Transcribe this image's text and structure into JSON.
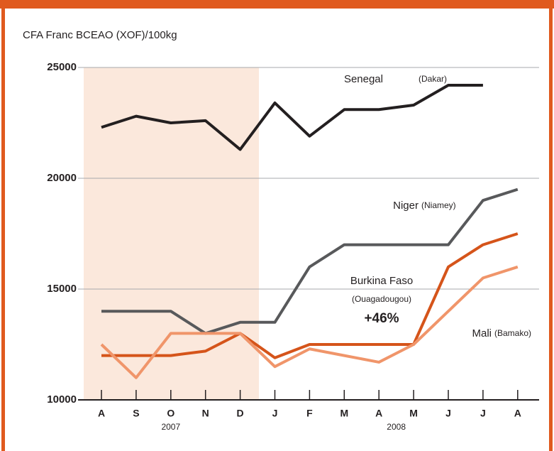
{
  "chart_data": {
    "type": "line",
    "y_axis_label": "CFA Franc BCEAO (XOF)/100kg",
    "categories": [
      "A",
      "S",
      "O",
      "N",
      "D",
      "J",
      "F",
      "M",
      "A",
      "M",
      "J",
      "J",
      "A"
    ],
    "years": [
      "2007",
      "2008"
    ],
    "ylim": [
      10000,
      25000
    ],
    "yticks": [
      10000,
      15000,
      20000,
      25000
    ],
    "grid": true,
    "series": [
      {
        "name": "Senegal",
        "location": "(Dakar)",
        "color": "#231f20",
        "values": [
          22300,
          22800,
          22500,
          22600,
          21300,
          23400,
          21900,
          23100,
          23100,
          23300,
          24200,
          24200,
          null
        ]
      },
      {
        "name": "Niger",
        "location": "(Niamey)",
        "color": "#58595b",
        "values": [
          14000,
          14000,
          14000,
          13000,
          13500,
          13500,
          16000,
          17000,
          17000,
          17000,
          17000,
          19000,
          19500
        ]
      },
      {
        "name": "Burkina Faso",
        "location": "(Ouagadougou)",
        "color": "#d5541a",
        "values": [
          12000,
          12000,
          12000,
          12200,
          13000,
          11900,
          12500,
          12500,
          12500,
          12500,
          16000,
          17000,
          17500
        ]
      },
      {
        "name": "Mali",
        "location": "(Bamako)",
        "color": "#f0956a",
        "values": [
          12500,
          11000,
          13000,
          13000,
          13000,
          11500,
          12300,
          12000,
          11700,
          12500,
          14000,
          15500,
          16000
        ]
      }
    ],
    "annotation": "+46%"
  }
}
